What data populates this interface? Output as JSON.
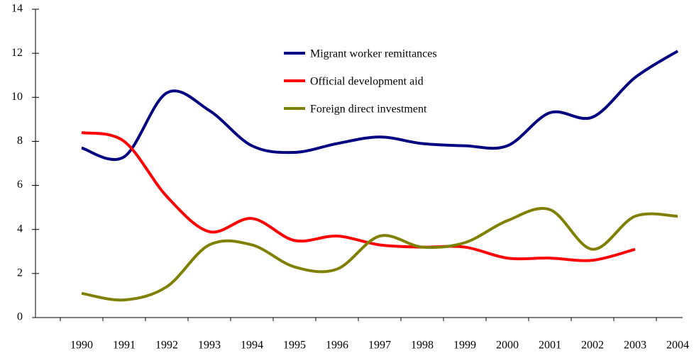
{
  "chart_data": {
    "type": "line",
    "categories": [
      "1990",
      "1991",
      "1992",
      "1993",
      "1994",
      "1995",
      "1996",
      "1997",
      "1998",
      "1999",
      "2000",
      "2001",
      "2002",
      "2003",
      "2004"
    ],
    "series": [
      {
        "name": "Migrant worker remittances",
        "color": "#000080",
        "values": [
          7.7,
          7.3,
          10.2,
          9.4,
          7.8,
          7.5,
          7.9,
          8.2,
          7.9,
          7.8,
          7.8,
          9.3,
          9.1,
          10.9,
          12.1
        ]
      },
      {
        "name": "Official development aid",
        "color": "#ff0000",
        "values": [
          8.4,
          8.0,
          5.5,
          3.9,
          4.5,
          3.5,
          3.7,
          3.3,
          3.2,
          3.2,
          2.7,
          2.7,
          2.6,
          3.1,
          null
        ]
      },
      {
        "name": "Foreign direct investment",
        "color": "#808000",
        "values": [
          1.1,
          0.8,
          1.4,
          3.3,
          3.3,
          2.3,
          2.2,
          3.7,
          3.2,
          3.4,
          4.4,
          4.9,
          3.1,
          4.6,
          4.6
        ]
      }
    ],
    "ylim": [
      0,
      14
    ],
    "yticks": [
      0,
      2,
      4,
      6,
      8,
      10,
      12,
      14
    ],
    "grid": false,
    "legend": "top"
  }
}
